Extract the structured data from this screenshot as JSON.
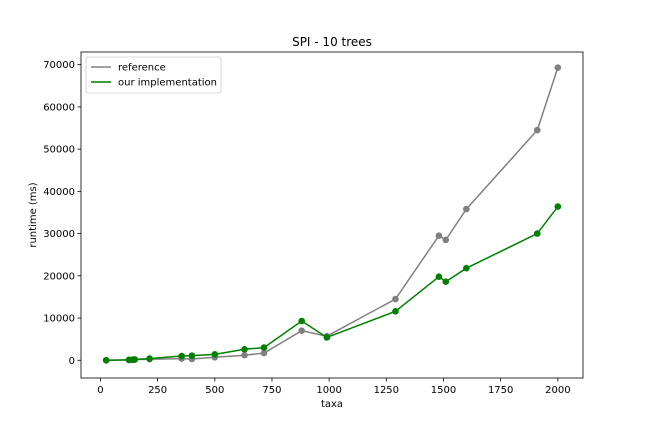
{
  "chart_data": {
    "type": "line",
    "title": "SPI - 10 trees",
    "xlabel": "taxa",
    "ylabel": "runtime (ms)",
    "xlim": [
      -85,
      2110
    ],
    "ylim": [
      -4200,
      73000
    ],
    "xticks": [
      0,
      250,
      500,
      750,
      1000,
      1250,
      1500,
      1750,
      2000
    ],
    "yticks": [
      0,
      10000,
      20000,
      30000,
      40000,
      50000,
      60000,
      70000
    ],
    "grid": false,
    "legend_position": "top-left",
    "series": [
      {
        "name": "reference",
        "color": "#808080",
        "x": [
          25,
          125,
          140,
          150,
          215,
          355,
          400,
          500,
          630,
          715,
          880,
          990,
          1290,
          1480,
          1510,
          1600,
          1910,
          2000
        ],
        "y": [
          0,
          50,
          80,
          150,
          250,
          400,
          300,
          700,
          1200,
          1700,
          7000,
          5700,
          14500,
          29500,
          28500,
          35800,
          54500,
          69300
        ]
      },
      {
        "name": "our implementation",
        "color": "#008000",
        "x": [
          25,
          125,
          140,
          150,
          215,
          355,
          400,
          500,
          630,
          715,
          880,
          990,
          1290,
          1480,
          1510,
          1600,
          1910,
          2000
        ],
        "y": [
          0,
          100,
          150,
          200,
          400,
          1000,
          1100,
          1400,
          2600,
          3000,
          9300,
          5400,
          11600,
          19800,
          18600,
          21800,
          30000,
          36400
        ]
      }
    ]
  }
}
